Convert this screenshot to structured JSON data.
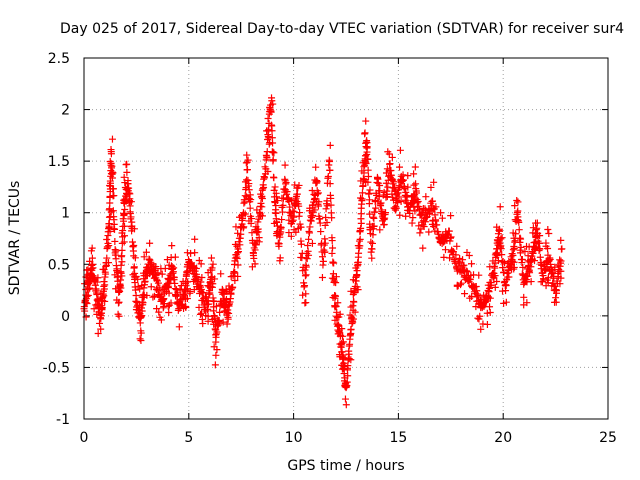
{
  "chart_data": {
    "type": "scatter",
    "title": "Day 025 of 2017, Sidereal Day-to-day VTEC variation (SDTVAR) for receiver sur4",
    "xlabel": "GPS time / hours",
    "ylabel": "SDTVAR / TECUs",
    "xlim": [
      0,
      25
    ],
    "ylim": [
      -1,
      2.5
    ],
    "xticks": [
      0,
      5,
      10,
      15,
      20,
      25
    ],
    "xtick_labels": [
      "0",
      "5",
      "10",
      "15",
      "20",
      "25"
    ],
    "yticks": [
      -1,
      -0.5,
      0,
      0.5,
      1,
      1.5,
      2,
      2.5
    ],
    "ytick_labels": [
      "-1",
      "-0.5",
      "0",
      "0.5",
      "1",
      "1.5",
      "2",
      "2.5"
    ],
    "grid": true,
    "marker": "+",
    "color": "#ff0000",
    "series": [
      {
        "name": "SDTVAR",
        "approximate_trace": [
          [
            0.0,
            0.05
          ],
          [
            0.2,
            0.3
          ],
          [
            0.4,
            0.5
          ],
          [
            0.6,
            0.2
          ],
          [
            0.8,
            0.0
          ],
          [
            1.0,
            0.35
          ],
          [
            1.2,
            0.9
          ],
          [
            1.3,
            1.55
          ],
          [
            1.5,
            0.6
          ],
          [
            1.7,
            0.2
          ],
          [
            1.9,
            1.0
          ],
          [
            2.1,
            1.3
          ],
          [
            2.3,
            0.8
          ],
          [
            2.5,
            0.1
          ],
          [
            2.7,
            -0.05
          ],
          [
            2.9,
            0.3
          ],
          [
            3.1,
            0.55
          ],
          [
            3.4,
            0.4
          ],
          [
            3.7,
            0.15
          ],
          [
            4.0,
            0.3
          ],
          [
            4.2,
            0.45
          ],
          [
            4.5,
            0.1
          ],
          [
            4.8,
            0.2
          ],
          [
            5.0,
            0.55
          ],
          [
            5.3,
            0.4
          ],
          [
            5.6,
            0.2
          ],
          [
            5.9,
            0.1
          ],
          [
            6.1,
            0.4
          ],
          [
            6.3,
            -0.2
          ],
          [
            6.6,
            0.2
          ],
          [
            6.9,
            0.0
          ],
          [
            7.2,
            0.5
          ],
          [
            7.5,
            0.8
          ],
          [
            7.8,
            1.4
          ],
          [
            8.1,
            0.6
          ],
          [
            8.4,
            1.0
          ],
          [
            8.7,
            1.5
          ],
          [
            8.9,
            2.1
          ],
          [
            9.1,
            1.1
          ],
          [
            9.3,
            0.7
          ],
          [
            9.6,
            1.3
          ],
          [
            9.9,
            0.9
          ],
          [
            10.2,
            1.2
          ],
          [
            10.5,
            0.3
          ],
          [
            10.8,
            0.9
          ],
          [
            11.1,
            1.3
          ],
          [
            11.4,
            0.5
          ],
          [
            11.7,
            1.55
          ],
          [
            11.9,
            0.4
          ],
          [
            12.1,
            -0.1
          ],
          [
            12.3,
            -0.3
          ],
          [
            12.5,
            -0.75
          ],
          [
            12.7,
            -0.2
          ],
          [
            12.9,
            0.2
          ],
          [
            13.1,
            0.6
          ],
          [
            13.3,
            1.2
          ],
          [
            13.5,
            1.7
          ],
          [
            13.7,
            0.6
          ],
          [
            14.0,
            1.3
          ],
          [
            14.3,
            0.9
          ],
          [
            14.6,
            1.45
          ],
          [
            14.9,
            1.1
          ],
          [
            15.2,
            1.35
          ],
          [
            15.5,
            1.0
          ],
          [
            15.8,
            1.2
          ],
          [
            16.2,
            0.9
          ],
          [
            16.6,
            1.1
          ],
          [
            17.0,
            0.7
          ],
          [
            17.4,
            0.8
          ],
          [
            17.8,
            0.5
          ],
          [
            18.2,
            0.4
          ],
          [
            18.6,
            0.3
          ],
          [
            19.0,
            0.1
          ],
          [
            19.3,
            0.2
          ],
          [
            19.6,
            0.5
          ],
          [
            19.8,
            0.8
          ],
          [
            20.1,
            0.3
          ],
          [
            20.4,
            0.5
          ],
          [
            20.7,
            1.0
          ],
          [
            21.0,
            0.3
          ],
          [
            21.3,
            0.5
          ],
          [
            21.6,
            0.8
          ],
          [
            21.9,
            0.4
          ],
          [
            22.2,
            0.6
          ],
          [
            22.5,
            0.2
          ],
          [
            22.8,
            0.65
          ]
        ]
      }
    ]
  }
}
